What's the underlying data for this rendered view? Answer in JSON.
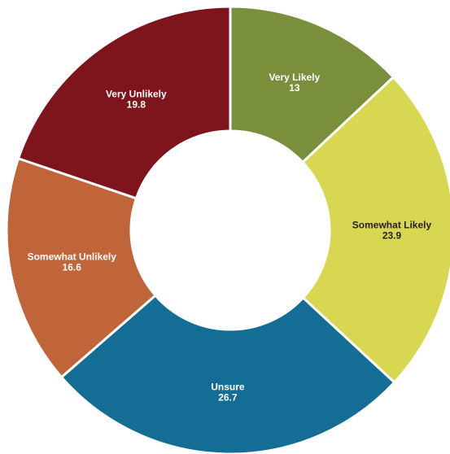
{
  "chart_data": {
    "type": "pie",
    "categories": [
      "Very Likely",
      "Somewhat Likely",
      "Unsure",
      "Somewhat Unlikely",
      "Very Unlikely"
    ],
    "values": [
      13,
      23.9,
      26.7,
      16.6,
      19.8
    ],
    "value_labels": [
      "13",
      "23.9",
      "26.7",
      "16.6",
      "19.8"
    ],
    "colors": [
      "#7a8f3c",
      "#d8d751",
      "#136d94",
      "#c0653a",
      "#7e141c"
    ],
    "label_colors": [
      "#ffffff",
      "#222222",
      "#ffffff",
      "#ffffff",
      "#ffffff"
    ],
    "donut": true,
    "start_angle_deg": 0,
    "direction": "clockwise"
  }
}
